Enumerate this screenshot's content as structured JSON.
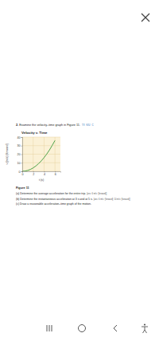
{
  "question": {
    "number": "2.",
    "text": "Examine the velocity–time graph in Figure 11.",
    "tags": [
      "T/I",
      "K/U",
      "C"
    ]
  },
  "chart_data": {
    "type": "line",
    "title": "Velocity v. Time",
    "x_label": "t (s)",
    "y_label": "v (m/s) [forward]",
    "x": [
      0,
      1,
      2,
      3,
      4,
      5,
      6
    ],
    "values": [
      0,
      1,
      4,
      9,
      16,
      25,
      36
    ],
    "color": "#3a9a3a",
    "xlim": [
      0,
      7
    ],
    "ylim": [
      0,
      40
    ],
    "xticks": [
      0,
      2,
      4,
      6
    ],
    "yticks": [
      0,
      10,
      20,
      30,
      40
    ],
    "grid": true
  },
  "figure_caption": "Figure 11",
  "parts": [
    {
      "label": "(a)",
      "text": "Determine the average acceleration for the entire trip.",
      "answer": "[ans: 6 m/s² [forward]]"
    },
    {
      "label": "(b)",
      "text": "Determine the instantaneous acceleration at 3 s and at 5 s.",
      "answer": "[ans: 6 m/s² [forward]; 10 m/s² [forward]]"
    },
    {
      "label": "(c)",
      "text": "Draw a reasonable acceleration–time graph of the motion."
    }
  ]
}
